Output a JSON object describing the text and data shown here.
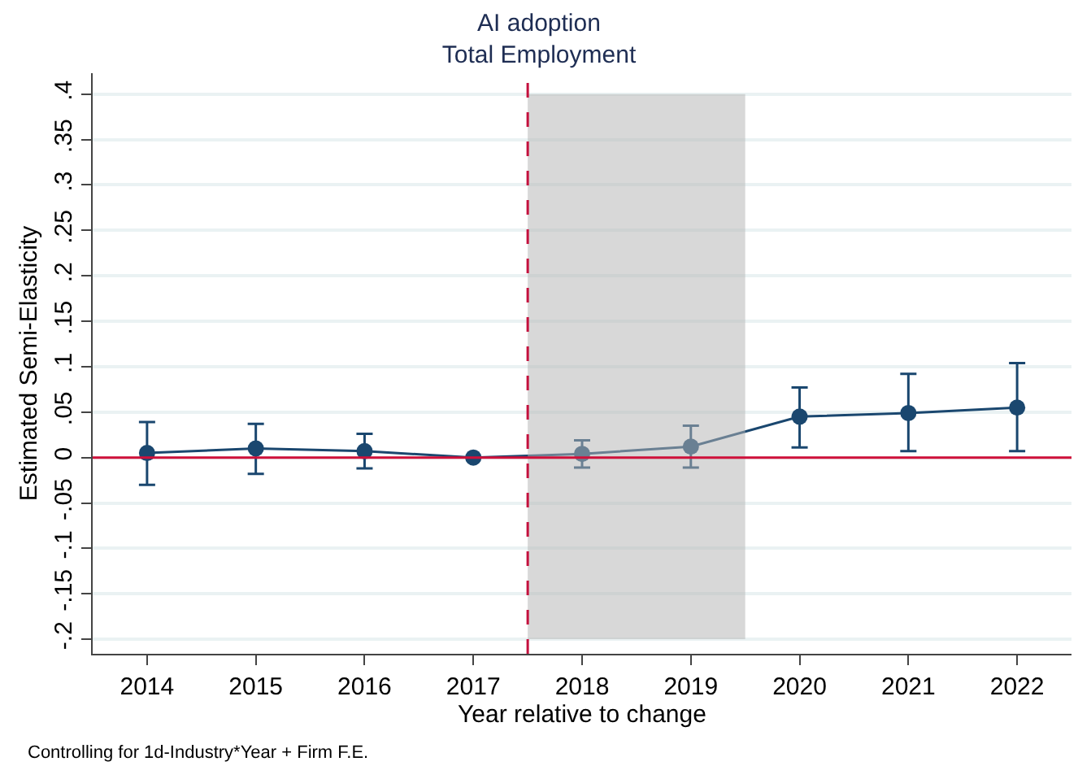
{
  "chart_data": {
    "type": "line",
    "title": "AI adoption\nTotal Employment",
    "xlabel": "Year relative to change",
    "ylabel": "Estimated Semi-Elasticity",
    "annotations": [
      "Controlling for 1d-Industry*Year + Firm F.E."
    ],
    "x": [
      2014,
      2015,
      2016,
      2017,
      2018,
      2019,
      2020,
      2021,
      2022
    ],
    "series": [
      {
        "color": "#1a476f",
        "values": [
          0.005,
          0.01,
          0.007,
          0,
          0.004,
          0.012,
          0.045,
          0.049,
          0.055
        ],
        "errors": [
          [
            -0.03,
            0.039
          ],
          [
            -0.018,
            0.037
          ],
          [
            -0.012,
            0.026
          ],
          null,
          [
            -0.011,
            0.019
          ],
          [
            -0.011,
            0.035
          ],
          [
            0.011,
            0.077
          ],
          [
            0.007,
            0.092
          ],
          [
            0.007,
            0.104
          ]
        ]
      }
    ],
    "xlim": [
      2013.5,
      2022.5
    ],
    "xticks": [
      2014,
      2015,
      2016,
      2017,
      2018,
      2019,
      2020,
      2021,
      2022
    ],
    "ylim": [
      -0.216,
      0.423
    ],
    "yticks": [
      {
        "value": -0.2,
        "label": "-.2"
      },
      {
        "value": -0.15,
        "label": "-.15"
      },
      {
        "value": -0.1,
        "label": "-.1"
      },
      {
        "value": -0.05,
        "label": "-.05"
      },
      {
        "value": 0,
        "label": "0"
      },
      {
        "value": 0.05,
        "label": ".05"
      },
      {
        "value": 0.1,
        "label": ".1"
      },
      {
        "value": 0.15,
        "label": ".15"
      },
      {
        "value": 0.2,
        "label": ".2"
      },
      {
        "value": 0.25,
        "label": ".25"
      },
      {
        "value": 0.3,
        "label": ".3"
      },
      {
        "value": 0.35,
        "label": ".35"
      },
      {
        "value": 0.4,
        "label": ".4"
      }
    ],
    "ref_lines": [
      {
        "axis": "x",
        "value": 2017.5,
        "color": "#c4103d",
        "line_style": "dashed"
      },
      {
        "axis": "y",
        "value": 0,
        "color": "#d0103a",
        "line_style": "solid"
      }
    ],
    "bands": [
      {
        "axis": "x",
        "from": 2017.5,
        "to": 2019.5,
        "color": "#b5b5b5"
      }
    ],
    "grid": "y",
    "legend": false,
    "marker": "circle",
    "line_style": "solid"
  }
}
